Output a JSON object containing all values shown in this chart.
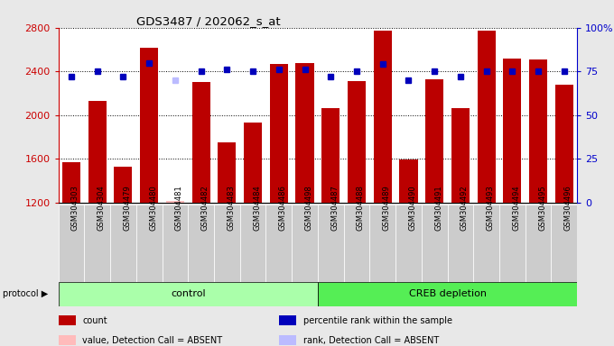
{
  "title": "GDS3487 / 202062_s_at",
  "samples": [
    "GSM304303",
    "GSM304304",
    "GSM304479",
    "GSM304480",
    "GSM304481",
    "GSM304482",
    "GSM304483",
    "GSM304484",
    "GSM304486",
    "GSM304498",
    "GSM304487",
    "GSM304488",
    "GSM304489",
    "GSM304490",
    "GSM304491",
    "GSM304492",
    "GSM304493",
    "GSM304494",
    "GSM304495",
    "GSM304496"
  ],
  "bar_values": [
    1570,
    2130,
    1530,
    2620,
    1215,
    2300,
    1750,
    1930,
    2470,
    2480,
    2060,
    2310,
    2770,
    1590,
    2330,
    2060,
    2770,
    2520,
    2510,
    2280
  ],
  "bar_absent": [
    false,
    false,
    false,
    false,
    true,
    false,
    false,
    false,
    false,
    false,
    false,
    false,
    false,
    false,
    false,
    false,
    false,
    false,
    false,
    false
  ],
  "rank_values": [
    72,
    75,
    72,
    80,
    70,
    75,
    76,
    75,
    76,
    76,
    72,
    75,
    79,
    70,
    75,
    72,
    75,
    75,
    75,
    75
  ],
  "rank_absent": [
    false,
    false,
    false,
    false,
    true,
    false,
    false,
    false,
    false,
    false,
    false,
    false,
    false,
    false,
    false,
    false,
    false,
    false,
    false,
    false
  ],
  "control_count": 10,
  "creb_count": 10,
  "ylim_left": [
    1200,
    2800
  ],
  "ylim_right": [
    0,
    100
  ],
  "yticks_left": [
    1200,
    1600,
    2000,
    2400,
    2800
  ],
  "yticks_right": [
    0,
    25,
    50,
    75,
    100
  ],
  "bar_color": "#bb0000",
  "bar_absent_color": "#ffbbbb",
  "rank_color": "#0000bb",
  "rank_absent_color": "#bbbbff",
  "grid_color": "#000000",
  "bg_color": "#e8e8e8",
  "plot_bg": "#ffffff",
  "xtick_bg": "#cccccc",
  "control_bg": "#aaffaa",
  "creb_bg": "#55ee55",
  "label_color_left": "#cc0000",
  "label_color_right": "#0000cc",
  "protocol_row_bg": "#888888"
}
